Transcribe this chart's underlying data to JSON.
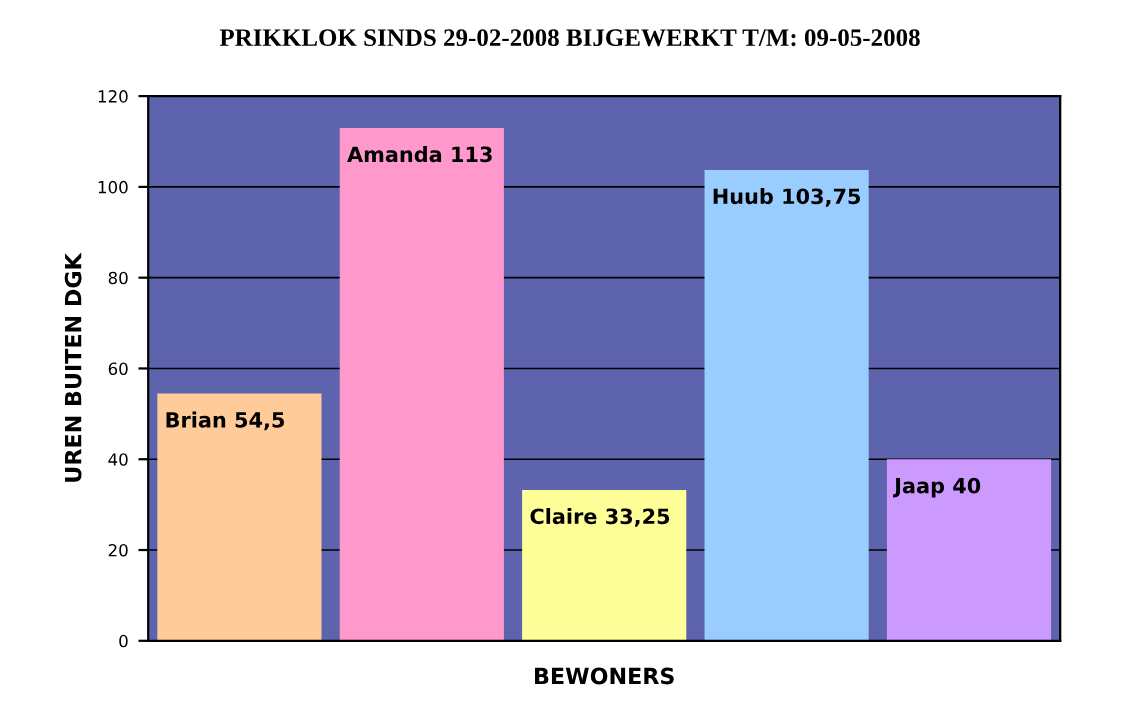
{
  "chart_data": {
    "type": "bar",
    "title": "PRIKKLOK SINDS 29-02-2008 BIJGEWERKT T/M: 09-05-2008",
    "xlabel": "BEWONERS",
    "ylabel": "UREN BUITEN DGK",
    "categories": [
      null,
      null,
      null,
      null,
      null
    ],
    "values": [
      54.5,
      113,
      33.25,
      103.75,
      40
    ],
    "colors": [
      "#ffcc99",
      "#ff99cc",
      "#ffff99",
      "#99ccff",
      "#cc99ff"
    ],
    "value_labels": [
      "Brian 54,5",
      "Amanda 113",
      "Claire 33,25",
      "Huub 103,75",
      "Jaap 40"
    ],
    "ylim": [
      0,
      120
    ],
    "yticks": [
      0,
      20,
      40,
      60,
      80,
      100,
      120
    ],
    "grid": "y",
    "legend": false
  }
}
